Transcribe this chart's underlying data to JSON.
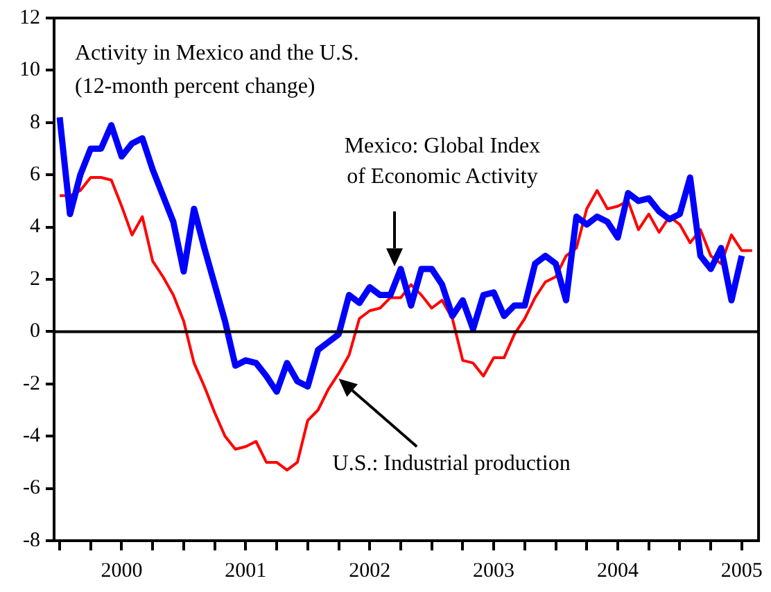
{
  "chart_data": {
    "type": "line",
    "title": "Activity in Mexico and the U.S.",
    "subtitle": "(12-month percent change)",
    "x": [
      "2000-01",
      "2000-02",
      "2000-03",
      "2000-04",
      "2000-05",
      "2000-06",
      "2000-07",
      "2000-08",
      "2000-09",
      "2000-10",
      "2000-11",
      "2000-12",
      "2001-01",
      "2001-02",
      "2001-03",
      "2001-04",
      "2001-05",
      "2001-06",
      "2001-07",
      "2001-08",
      "2001-09",
      "2001-10",
      "2001-11",
      "2001-12",
      "2002-01",
      "2002-02",
      "2002-03",
      "2002-04",
      "2002-05",
      "2002-06",
      "2002-07",
      "2002-08",
      "2002-09",
      "2002-10",
      "2002-11",
      "2002-12",
      "2003-01",
      "2003-02",
      "2003-03",
      "2003-04",
      "2003-05",
      "2003-06",
      "2003-07",
      "2003-08",
      "2003-09",
      "2003-10",
      "2003-11",
      "2003-12",
      "2004-01",
      "2004-02",
      "2004-03",
      "2004-04",
      "2004-05",
      "2004-06",
      "2004-07",
      "2004-08",
      "2004-09",
      "2004-10",
      "2004-11",
      "2004-12",
      "2005-01",
      "2005-02",
      "2005-03",
      "2005-04",
      "2005-05",
      "2005-06",
      "2005-07",
      "2005-08"
    ],
    "series": [
      {
        "name": "Mexico: Global Index of Economic Activity",
        "color": "#0000ff",
        "values": [
          8.2,
          4.5,
          6.0,
          7.0,
          7.0,
          7.9,
          6.7,
          7.2,
          7.4,
          6.2,
          5.2,
          4.2,
          2.3,
          4.7,
          3.2,
          1.8,
          0.4,
          -1.3,
          -1.1,
          -1.2,
          -1.7,
          -2.3,
          -1.2,
          -1.9,
          -2.1,
          -0.7,
          -0.4,
          -0.1,
          1.4,
          1.1,
          1.7,
          1.4,
          1.4,
          2.4,
          1.0,
          2.4,
          2.4,
          1.8,
          0.6,
          1.2,
          0.1,
          1.4,
          1.5,
          0.6,
          1.0,
          1.0,
          2.6,
          2.9,
          2.6,
          1.2,
          4.4,
          4.1,
          4.4,
          4.2,
          3.6,
          5.3,
          5.0,
          5.1,
          4.6,
          4.3,
          4.5,
          5.9,
          2.9,
          2.4,
          3.2,
          1.2,
          2.9,
          null
        ]
      },
      {
        "name": "U.S.: Industrial production",
        "color": "#ff0000",
        "values": [
          5.2,
          5.2,
          5.4,
          5.9,
          5.9,
          5.8,
          4.8,
          3.7,
          4.4,
          2.7,
          2.1,
          1.4,
          0.4,
          -1.2,
          -2.1,
          -3.1,
          -4.0,
          -4.5,
          -4.4,
          -4.2,
          -5.0,
          -5.0,
          -5.3,
          -5.0,
          -3.4,
          -3.0,
          -2.2,
          -1.6,
          -0.9,
          0.5,
          0.8,
          0.9,
          1.3,
          1.3,
          1.8,
          1.4,
          0.9,
          1.2,
          0.5,
          -1.1,
          -1.2,
          -1.7,
          -1.0,
          -1.0,
          -0.1,
          0.5,
          1.3,
          1.9,
          2.1,
          2.9,
          3.2,
          4.7,
          5.4,
          4.7,
          4.8,
          5.0,
          3.9,
          4.5,
          3.8,
          4.4,
          4.1,
          3.4,
          3.9,
          2.9,
          2.6,
          3.7,
          3.1,
          3.1
        ]
      }
    ],
    "xlim": [
      "1999-12-15",
      "2005-08-20"
    ],
    "xticks": [
      {
        "value": "2000-01-01",
        "label": null
      },
      {
        "value": "2000-04-01",
        "label": null
      },
      {
        "value": "2000-07-01",
        "label": "2000"
      },
      {
        "value": "2000-10-01",
        "label": null
      },
      {
        "value": "2001-01-01",
        "label": null
      },
      {
        "value": "2001-04-01",
        "label": null
      },
      {
        "value": "2001-07-01",
        "label": "2001"
      },
      {
        "value": "2001-10-01",
        "label": null
      },
      {
        "value": "2002-01-01",
        "label": null
      },
      {
        "value": "2002-04-01",
        "label": null
      },
      {
        "value": "2002-07-01",
        "label": "2002"
      },
      {
        "value": "2002-10-01",
        "label": null
      },
      {
        "value": "2003-01-01",
        "label": null
      },
      {
        "value": "2003-04-01",
        "label": null
      },
      {
        "value": "2003-07-01",
        "label": "2003"
      },
      {
        "value": "2003-10-01",
        "label": null
      },
      {
        "value": "2004-01-01",
        "label": null
      },
      {
        "value": "2004-04-01",
        "label": null
      },
      {
        "value": "2004-07-01",
        "label": "2004"
      },
      {
        "value": "2004-10-01",
        "label": null
      },
      {
        "value": "2005-01-01",
        "label": null
      },
      {
        "value": "2005-04-01",
        "label": null
      },
      {
        "value": "2005-07-01",
        "label": "2005"
      }
    ],
    "ylim": [
      -8,
      12
    ],
    "yticks": [
      -8,
      -6,
      -4,
      -2,
      0,
      2,
      4,
      6,
      8,
      10,
      12
    ],
    "ref_lines": [
      {
        "axis": "y",
        "value": 0,
        "color": "#000000"
      }
    ],
    "grid": false,
    "legend": false,
    "marker": "none",
    "line_style": "solid"
  }
}
